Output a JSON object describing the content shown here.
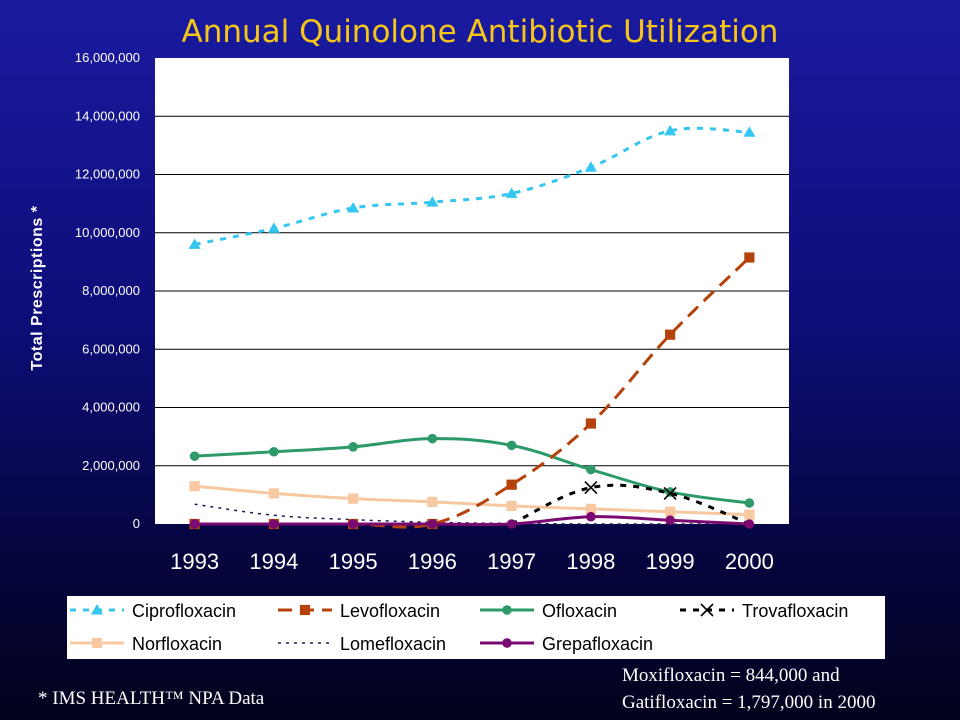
{
  "slide": {
    "title": "Annual Quinolone Antibiotic Utilization",
    "footnote": "* IMS HEALTH™ NPA Data",
    "note_line1": "Moxifloxacin = 844,000 and",
    "note_line2": "Gatifloxacin = 1,797,000 in 2000"
  },
  "chart_data": {
    "type": "line",
    "title": "Annual Quinolone Antibiotic Utilization",
    "ylabel": "Total Prescriptions *",
    "xlabel": "",
    "ylim": [
      0,
      16000000
    ],
    "yticks": [
      0,
      2000000,
      4000000,
      6000000,
      8000000,
      10000000,
      12000000,
      14000000,
      16000000
    ],
    "ytick_labels": [
      "0",
      "2,000,000",
      "4,000,000",
      "6,000,000",
      "8,000,000",
      "10,000,000",
      "12,000,000",
      "14,000,000",
      "16,000,000"
    ],
    "categories": [
      "1993",
      "1994",
      "1995",
      "1996",
      "1997",
      "1998",
      "1999",
      "2000"
    ],
    "grid": "horizontal",
    "legend_position": "bottom",
    "series": [
      {
        "name": "Ciprofloxacin",
        "color": "#33c6f0",
        "dash": "dash",
        "marker": "triangle",
        "values": [
          9600000,
          10150000,
          10850000,
          11050000,
          11350000,
          12250000,
          13500000,
          13450000
        ]
      },
      {
        "name": "Levofloxacin",
        "color": "#b5420a",
        "dash": "longdash",
        "marker": "square",
        "values": [
          0,
          0,
          0,
          0,
          1350000,
          3450000,
          6500000,
          9150000
        ]
      },
      {
        "name": "Ofloxacin",
        "color": "#2e9a6a",
        "dash": "solid",
        "marker": "circle",
        "values": [
          2330000,
          2480000,
          2650000,
          2930000,
          2700000,
          1870000,
          1100000,
          720000
        ]
      },
      {
        "name": "Trovafloxacin",
        "color": "#000000",
        "dash": "dash",
        "marker": "x",
        "values": [
          null,
          null,
          null,
          null,
          0,
          1250000,
          1050000,
          0
        ]
      },
      {
        "name": "Norfloxacin",
        "color": "#f8c8a0",
        "dash": "solid",
        "marker": "square",
        "values": [
          1300000,
          1050000,
          870000,
          760000,
          620000,
          520000,
          420000,
          320000
        ]
      },
      {
        "name": "Lomefloxacin",
        "color": "#1a1a60",
        "dash": "dot",
        "marker": "none",
        "values": [
          680000,
          300000,
          150000,
          60000,
          20000,
          0,
          0,
          0
        ]
      },
      {
        "name": "Grepafloxacin",
        "color": "#7a0a72",
        "dash": "solid",
        "marker": "circle",
        "values": [
          0,
          0,
          0,
          0,
          0,
          250000,
          130000,
          0
        ]
      }
    ]
  }
}
